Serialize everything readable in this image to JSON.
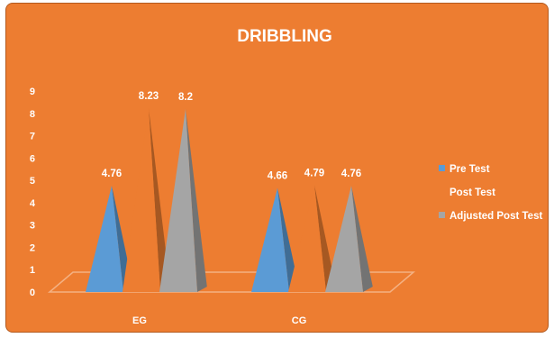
{
  "chart_data": {
    "type": "bar",
    "shape": "3d-pyramid",
    "title": "DRIBBLING",
    "xlabel": "",
    "ylabel": "",
    "ylim": [
      0,
      9
    ],
    "yticks": [
      "0",
      "1",
      "2",
      "3",
      "4",
      "5",
      "6",
      "7",
      "8",
      "9"
    ],
    "categories": [
      "EG",
      "CG"
    ],
    "series": [
      {
        "name": "Pre Test",
        "values": [
          4.76,
          4.66
        ],
        "labels": [
          "4.76",
          "4.66"
        ],
        "color": "#5B9BD5"
      },
      {
        "name": "Post Test",
        "values": [
          8.23,
          4.79
        ],
        "labels": [
          "8.23",
          "4.79"
        ],
        "color": "#ED7D31"
      },
      {
        "name": "Adjusted Post Test",
        "values": [
          8.2,
          4.76
        ],
        "labels": [
          "8.2",
          "4.76"
        ],
        "color": "#A5A5A5"
      }
    ],
    "legend_position": "right",
    "grid": false,
    "colors": {
      "background": "#ED7D31",
      "text": "#FFFFFF",
      "floor_line": "#F4B183"
    }
  }
}
